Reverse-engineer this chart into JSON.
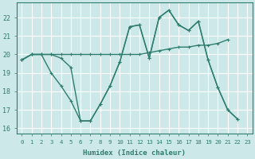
{
  "xlabel": "Humidex (Indice chaleur)",
  "bg_color": "#cde8e8",
  "grid_color": "#ffffff",
  "line_color": "#2e7d6e",
  "xlim": [
    -0.5,
    23.5
  ],
  "ylim": [
    15.7,
    22.8
  ],
  "yticks": [
    16,
    17,
    18,
    19,
    20,
    21,
    22
  ],
  "xticks": [
    0,
    1,
    2,
    3,
    4,
    5,
    6,
    7,
    8,
    9,
    10,
    11,
    12,
    13,
    14,
    15,
    16,
    17,
    18,
    19,
    20,
    21,
    22,
    23
  ],
  "line1_y": [
    19.7,
    20.0,
    20.0,
    20.0,
    20.0,
    20.0,
    20.0,
    20.0,
    20.0,
    20.0,
    20.0,
    20.0,
    20.0,
    20.1,
    20.2,
    20.3,
    20.4,
    20.4,
    20.5,
    20.5,
    20.6,
    20.8,
    null,
    null
  ],
  "line2_y": [
    19.7,
    20.0,
    20.0,
    20.0,
    19.8,
    19.3,
    16.4,
    16.4,
    17.3,
    18.3,
    19.6,
    21.5,
    21.6,
    19.8,
    22.0,
    22.4,
    21.6,
    21.3,
    21.8,
    19.7,
    18.2,
    17.0,
    16.5,
    null
  ],
  "line3_y": [
    19.7,
    20.0,
    20.0,
    19.0,
    18.3,
    17.5,
    16.4,
    16.4,
    17.3,
    18.3,
    19.6,
    21.5,
    21.6,
    19.8,
    22.0,
    22.4,
    21.6,
    21.3,
    21.8,
    19.7,
    18.2,
    17.0,
    16.5,
    null
  ]
}
